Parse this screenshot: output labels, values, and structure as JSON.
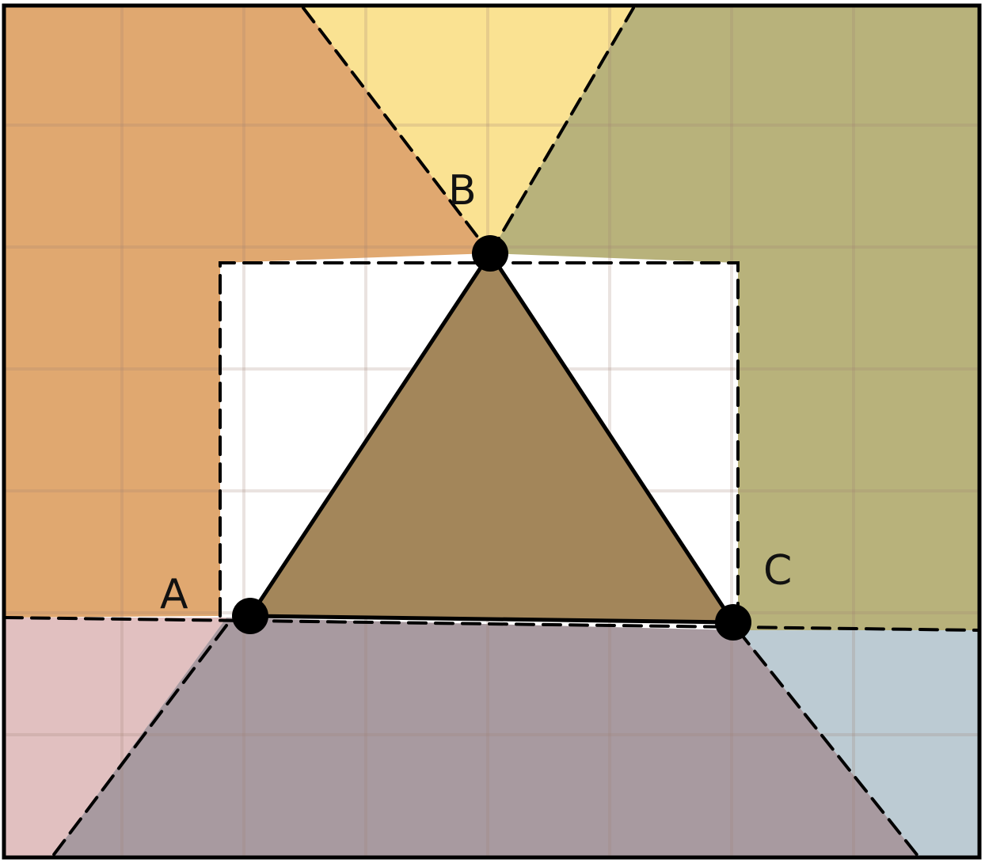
{
  "diagram": {
    "points": [
      {
        "id": "A",
        "label": "A"
      },
      {
        "id": "B",
        "label": "B"
      },
      {
        "id": "C",
        "label": "C"
      }
    ],
    "region_colors": {
      "top_left": "#e0a870",
      "top": "#fae292",
      "top_right": "#b8b27b",
      "bottom_left": "#e1c0c0",
      "bottom_right": "#bccbd3",
      "bottom": "#a89aa0",
      "triangle": "#a3865a"
    },
    "grid_color": "#a08070",
    "line_color": "#000000"
  }
}
